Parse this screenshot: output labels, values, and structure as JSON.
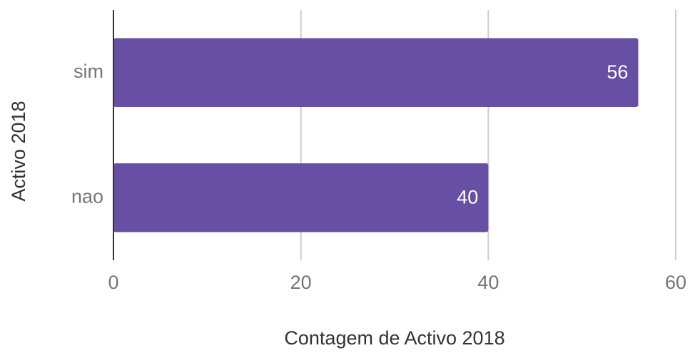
{
  "chart_data": {
    "type": "bar",
    "orientation": "horizontal",
    "x_label": "Contagem de Activo 2018",
    "y_label": "Activo 2018",
    "categories": [
      "sim",
      "nao"
    ],
    "values": [
      56,
      40
    ],
    "color": "#6750a4",
    "xlim": [
      0,
      60
    ],
    "xticks": [
      0,
      20,
      40,
      60
    ],
    "grid": true
  }
}
